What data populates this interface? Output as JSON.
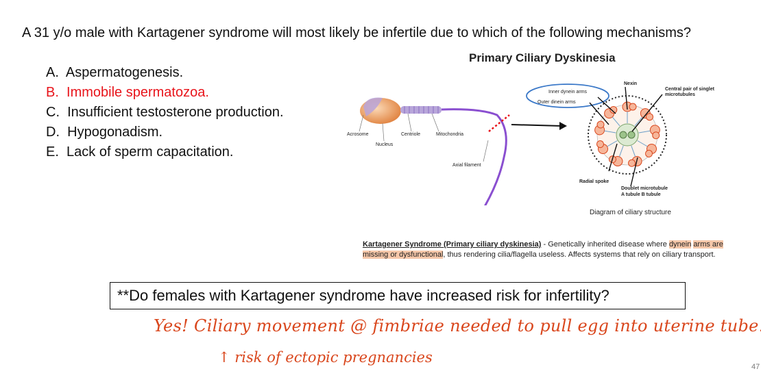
{
  "question": {
    "text": "A 31 y/o male with Kartagener syndrome will most likely be infertile due to which of the following mechanisms?",
    "options": [
      {
        "label": "A.",
        "text": "Aspermatogenesis.",
        "correct": false
      },
      {
        "label": "B.",
        "text": "Immobile spermatozoa.",
        "correct": true
      },
      {
        "label": "C.",
        "text": "Insufficient testosterone production.",
        "correct": false
      },
      {
        "label": "D.",
        "text": "Hypogonadism.",
        "correct": false
      },
      {
        "label": "E.",
        "text": "Lack of sperm capacitation.",
        "correct": false
      }
    ]
  },
  "diagram": {
    "title": "Primary Ciliary Dyskinesia",
    "labels": {
      "acrosome": "Acrosome",
      "nucleus": "Nucleus",
      "centriole": "Centriole",
      "mitochondria": "Mitochondria",
      "axial_filament": "Axial filament",
      "inner_dynein": "Inner dynein arms",
      "outer_dynein": "Outer dinein arms",
      "nexin": "Nexin",
      "central_pair_1": "Central pair of singlet",
      "central_pair_2": "microtubules",
      "radial_spoke": "Radial spoke",
      "doublet_1": "Doublet microtubule",
      "doublet_2": "A tubule B tubule"
    },
    "caption": "Diagram of ciliary structure"
  },
  "definition": {
    "term": "Kartagener Syndrome (Primary ciliary dyskinesia)",
    "dash": " - Genetically inherited disease where ",
    "highlight_1": "dynein",
    "gap": " ",
    "highlight_2": "arms are missing or dysfunctional",
    "rest": ", thus rendering cilia/flagella useless. Affects systems that rely on ciliary transport."
  },
  "prompt_box": "**Do females with Kartagener syndrome have increased risk for infertility?",
  "handwritten": {
    "line1": "Yes! Ciliary movement @ fimbriae needed to pull egg into uterine tube.",
    "line2": "↑ risk of ectopic pregnancies"
  },
  "page_number": "47",
  "colors": {
    "correct_answer": "#e8141b",
    "handwriting": "#d9461c",
    "highlight": "#f6c7a9",
    "sperm_tail": "#8a4fd0",
    "sperm_head": "#e89a5c"
  }
}
